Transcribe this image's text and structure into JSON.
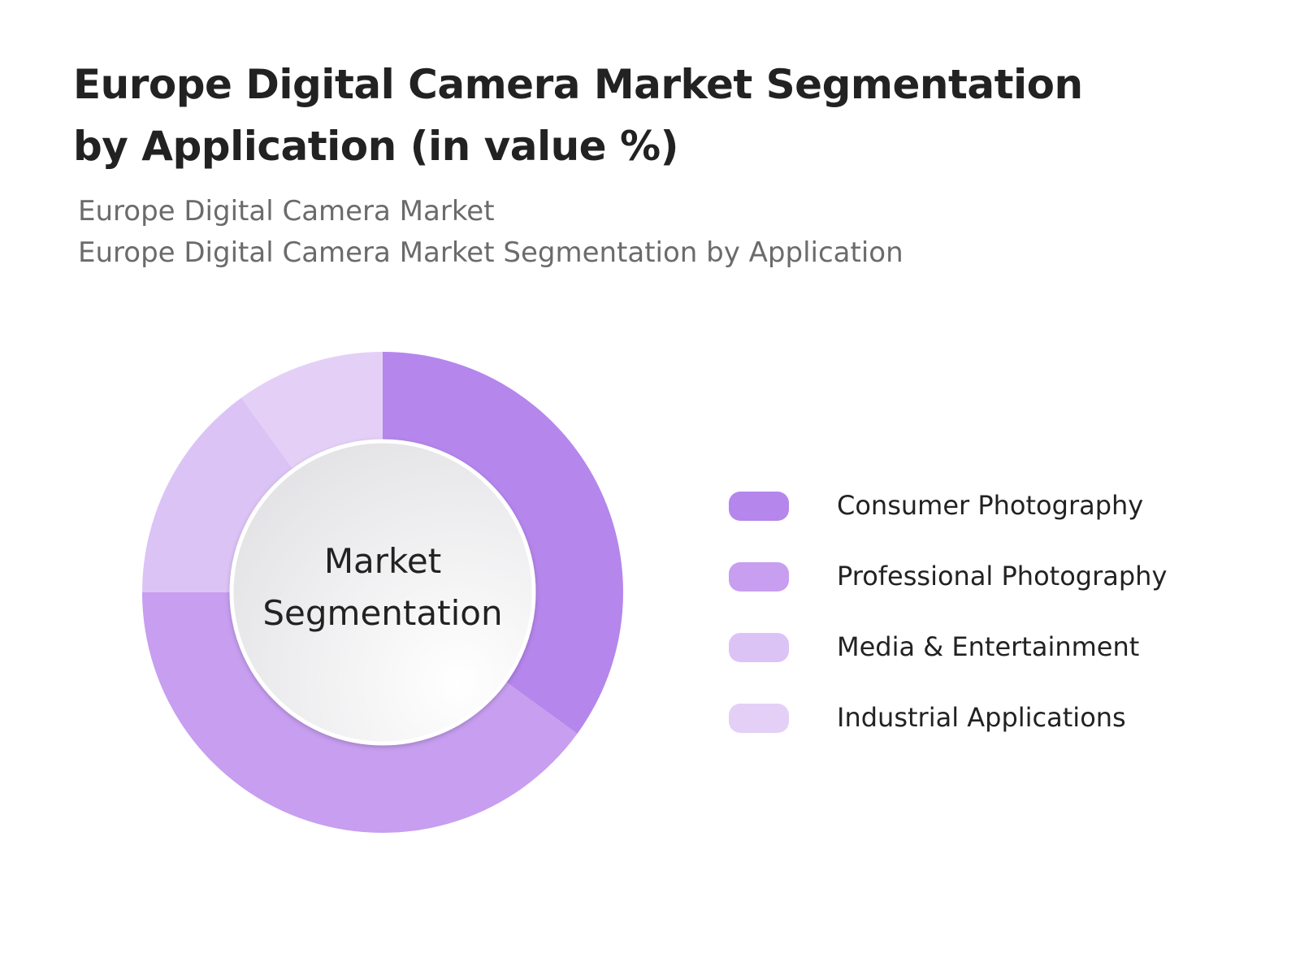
{
  "chart_data": {
    "type": "donut",
    "title": "Europe Digital Camera Market Segmentation by Application (in value %)",
    "subtitle_lines": [
      "Europe Digital Camera Market",
      "Europe Digital Camera Market Segmentation by Application"
    ],
    "center_label": "Market Segmentation",
    "categories": [
      "Consumer Photography",
      "Professional Photography",
      "Media & Entertainment",
      "Industrial Applications"
    ],
    "values": [
      35,
      40,
      15,
      10
    ],
    "colors": [
      "#b586ec",
      "#c79ef0",
      "#dcc3f6",
      "#e4d0f7"
    ]
  }
}
